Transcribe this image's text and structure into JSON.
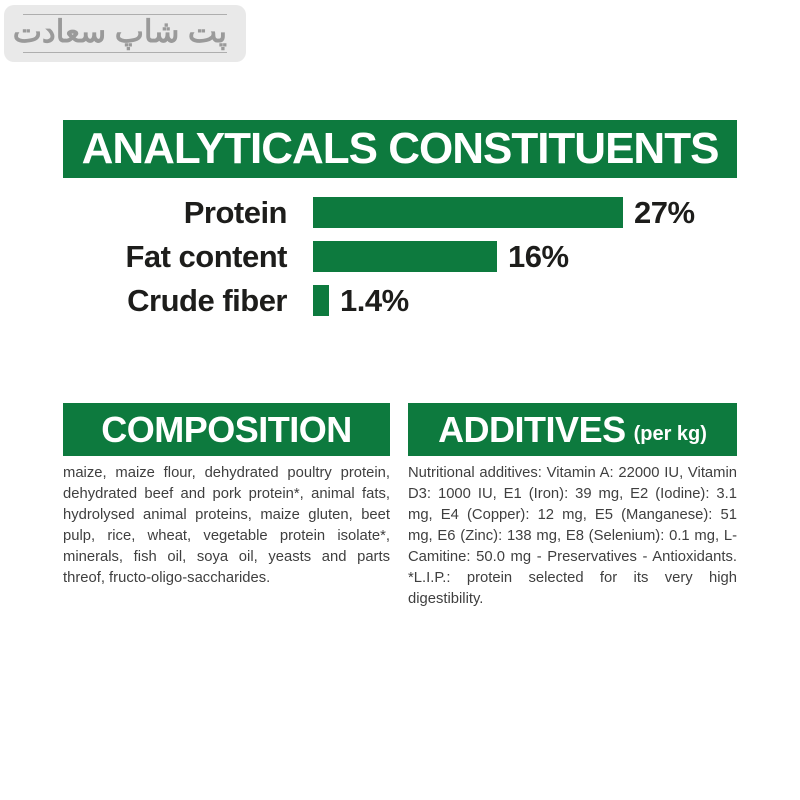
{
  "badge": {
    "text": "پت شاپ سعادت"
  },
  "colors": {
    "green": "#0d7a3e",
    "text_dark": "#1d1d1b",
    "body_text": "#3f3f3f",
    "badge_bg": "#e9e9e9",
    "badge_text": "#9a9a9a"
  },
  "chart_data": {
    "type": "bar",
    "orientation": "horizontal",
    "title": "ANALYTICALS CONSTITUENTS",
    "categories": [
      "Protein",
      "Fat content",
      "Crude fiber"
    ],
    "values": [
      27,
      16,
      1.4
    ],
    "value_labels": [
      "27%",
      "16%",
      "1.4%"
    ],
    "unit": "%",
    "xlim": [
      0,
      27
    ],
    "bar_color": "#0d7a3e",
    "grid": false,
    "legend": false
  },
  "sections": {
    "analyticals": {
      "title": "ANALYTICALS CONSTITUENTS"
    },
    "composition": {
      "title": "COMPOSITION",
      "body": "maize, maize flour, dehydrated poultry protein, dehydrated beef and pork protein*, animal fats, hydrolysed animal proteins, maize gluten, beet pulp, rice, wheat, vegetable protein isolate*, minerals, fish oil, soya oil, yeasts and parts threof, fructo-oligo-saccharides."
    },
    "additives": {
      "title": "ADDITIVES",
      "unit": "(per kg)",
      "body": "Nutritional additives: Vitamin A: 22000 IU, Vitamin D3: 1000 IU, E1 (Iron): 39 mg, E2 (Iodine): 3.1 mg, E4 (Copper): 12 mg, E5 (Manganese): 51 mg, E6 (Zinc): 138 mg, E8 (Selenium): 0.1 mg, L- Camitine: 50.0 mg - Preservatives - Antioxidants. *L.I.P.: protein selected for its very high digestibility."
    }
  }
}
